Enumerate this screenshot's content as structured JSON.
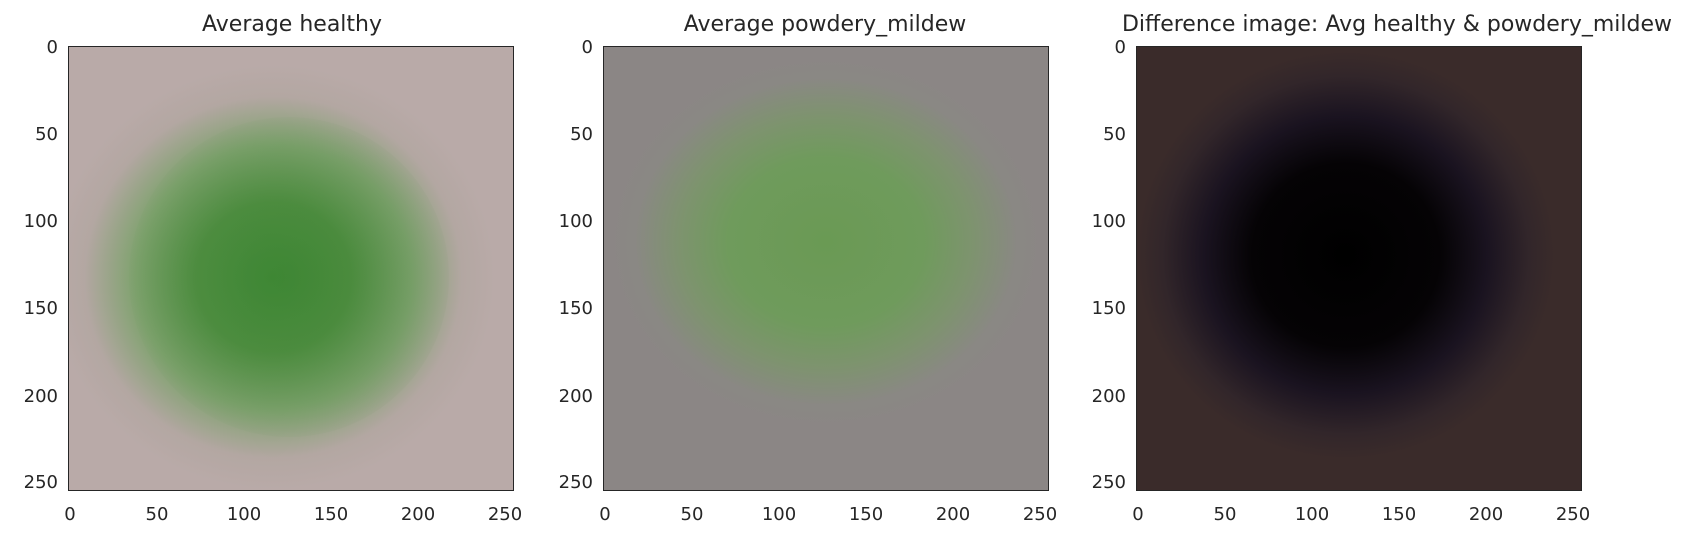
{
  "panels": [
    {
      "title": "Average healthy",
      "x_ticks": [
        "0",
        "50",
        "100",
        "150",
        "200",
        "250"
      ],
      "y_ticks": [
        "0",
        "50",
        "100",
        "150",
        "200",
        "250"
      ],
      "background_color": "#b9aaa8",
      "leaf_color": "#4f8a3b"
    },
    {
      "title": "Average powdery_mildew",
      "x_ticks": [
        "0",
        "50",
        "100",
        "150",
        "200",
        "250"
      ],
      "y_ticks": [
        "0",
        "50",
        "100",
        "150",
        "200",
        "250"
      ],
      "background_color": "#8b8685",
      "leaf_color": "#6a9a54"
    },
    {
      "title": "Difference image: Avg healthy & powdery_mildew",
      "x_ticks": [
        "0",
        "50",
        "100",
        "150",
        "200",
        "250"
      ],
      "y_ticks": [
        "0",
        "50",
        "100",
        "150",
        "200",
        "250"
      ],
      "background_color": "#3a2b2a",
      "leaf_color": "#000000"
    }
  ]
}
